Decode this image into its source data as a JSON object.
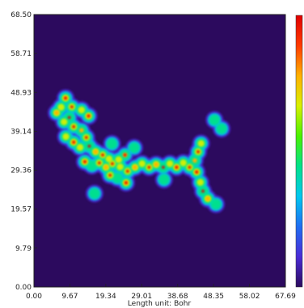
{
  "chart_data": {
    "type": "heatmap",
    "title": "",
    "xlabel": "Length unit: Bohr",
    "ylabel": "",
    "xlim": [
      0.0,
      67.69
    ],
    "ylim": [
      0.0,
      68.5
    ],
    "x_ticks": [
      "0.00",
      "9.67",
      "19.34",
      "29.01",
      "38.68",
      "48.35",
      "58.02",
      "67.69"
    ],
    "y_ticks": [
      "0.00",
      "9.79",
      "19.57",
      "29.36",
      "39.14",
      "48.93",
      "58.71",
      "68.50"
    ],
    "colorbar": true,
    "colormap": "rainbow",
    "background_color": "#2c0a5e",
    "colormap_stops": [
      "#2c0a5e",
      "#4a2bd6",
      "#1f6df2",
      "#00c7f0",
      "#00e28a",
      "#49f200",
      "#d8f000",
      "#ffb100",
      "#ff3a00",
      "#e00000"
    ]
  }
}
